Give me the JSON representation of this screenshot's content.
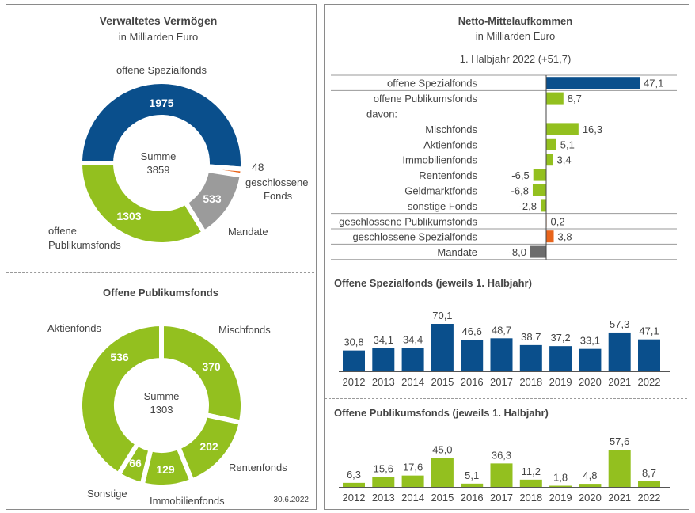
{
  "colors": {
    "dark_blue": "#0a4f8c",
    "green": "#93c01f",
    "gray": "#9b9b9b",
    "orange": "#e8641b",
    "dark_gray": "#6d6d6d"
  },
  "chart_data": [
    {
      "type": "pie",
      "title": "Verwaltetes Vermögen",
      "subtitle": "in Milliarden Euro",
      "center_label": "Summe",
      "center_value": "3859",
      "slices": [
        {
          "name": "offene Spezialfonds",
          "value": 1975,
          "value_label": "1975",
          "color": "#0a4f8c"
        },
        {
          "name": "geschlossene Fonds",
          "name_lines": [
            "geschlossene",
            "Fonds"
          ],
          "value": 48,
          "value_label": "48",
          "color": "#e8641b"
        },
        {
          "name": "Mandate",
          "value": 533,
          "value_label": "533",
          "color": "#9b9b9b"
        },
        {
          "name": "offene Publikumsfonds",
          "name_lines": [
            "offene",
            "Publikumsfonds"
          ],
          "value": 1303,
          "value_label": "1303",
          "color": "#93c01f"
        }
      ]
    },
    {
      "type": "pie",
      "title": "Offene Publikumsfonds",
      "center_label": "Summe",
      "center_value": "1303",
      "date": "30.6.2022",
      "slices": [
        {
          "name": "Mischfonds",
          "value": 370,
          "value_label": "370",
          "color": "#93c01f"
        },
        {
          "name": "Rentenfonds",
          "value": 202,
          "value_label": "202",
          "color": "#93c01f"
        },
        {
          "name": "Immobilienfonds",
          "value": 129,
          "value_label": "129",
          "color": "#93c01f"
        },
        {
          "name": "Sonstige",
          "value": 66,
          "value_label": "66",
          "color": "#93c01f"
        },
        {
          "name": "Aktienfonds",
          "value": 536,
          "value_label": "536",
          "color": "#93c01f"
        }
      ]
    },
    {
      "type": "bar",
      "orientation": "horizontal",
      "title": "Netto-Mittelaufkommen",
      "subtitle": "in Milliarden Euro",
      "period_label": "1. Halbjahr 2022 (+51,7)",
      "rows": [
        {
          "label": "offene Spezialfonds",
          "value": 47.1,
          "value_label": "47,1",
          "color": "#0a4f8c"
        },
        {
          "label": "offene Publikumsfonds",
          "value": 8.7,
          "value_label": "8,7",
          "color": "#93c01f"
        },
        {
          "label": "davon:",
          "value": null,
          "value_label": "",
          "color": ""
        },
        {
          "label": "Mischfonds",
          "value": 16.3,
          "value_label": "16,3",
          "color": "#93c01f"
        },
        {
          "label": "Aktienfonds",
          "value": 5.1,
          "value_label": "5,1",
          "color": "#93c01f"
        },
        {
          "label": "Immobilienfonds",
          "value": 3.4,
          "value_label": "3,4",
          "color": "#93c01f"
        },
        {
          "label": "Rentenfonds",
          "value": -6.5,
          "value_label": "-6,5",
          "color": "#93c01f"
        },
        {
          "label": "Geldmarktfonds",
          "value": -6.8,
          "value_label": "-6,8",
          "color": "#93c01f"
        },
        {
          "label": "sonstige Fonds",
          "value": -2.8,
          "value_label": "-2,8",
          "color": "#93c01f"
        },
        {
          "label": "geschlossene Publikumsfonds",
          "value": 0.2,
          "value_label": "0,2",
          "color": "#e8641b"
        },
        {
          "label": "geschlossene Spezialfonds",
          "value": 3.8,
          "value_label": "3,8",
          "color": "#e8641b"
        },
        {
          "label": "Mandate",
          "value": -8.0,
          "value_label": "-8,0",
          "color": "#6d6d6d"
        }
      ]
    },
    {
      "type": "bar",
      "title": "Offene Spezialfonds (jeweils 1. Halbjahr)",
      "color": "#0a4f8c",
      "categories": [
        "2012",
        "2013",
        "2014",
        "2015",
        "2016",
        "2017",
        "2018",
        "2019",
        "2020",
        "2021",
        "2022"
      ],
      "values": [
        30.8,
        34.1,
        34.4,
        70.1,
        46.6,
        48.7,
        38.7,
        37.2,
        33.1,
        57.3,
        47.1
      ],
      "value_labels": [
        "30,8",
        "34,1",
        "34,4",
        "70,1",
        "46,6",
        "48,7",
        "38,7",
        "37,2",
        "33,1",
        "57,3",
        "47,1"
      ]
    },
    {
      "type": "bar",
      "title": "Offene Publikumsfonds (jeweils 1. Halbjahr)",
      "color": "#93c01f",
      "categories": [
        "2012",
        "2013",
        "2014",
        "2015",
        "2016",
        "2017",
        "2018",
        "2019",
        "2020",
        "2021",
        "2022"
      ],
      "values": [
        6.3,
        15.6,
        17.6,
        45.0,
        5.1,
        36.3,
        11.2,
        1.8,
        4.8,
        57.6,
        8.7
      ],
      "value_labels": [
        "6,3",
        "15,6",
        "17,6",
        "45,0",
        "5,1",
        "36,3",
        "11,2",
        "1,8",
        "4,8",
        "57,6",
        "8,7"
      ]
    }
  ]
}
